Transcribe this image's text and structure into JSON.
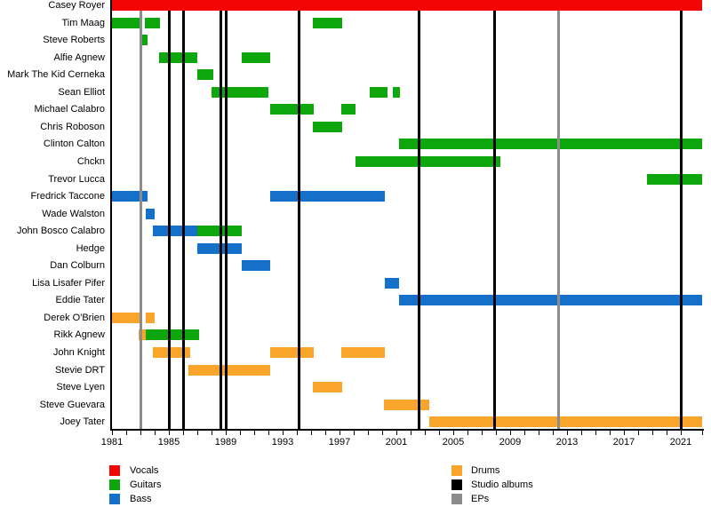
{
  "chart_data": {
    "type": "timeline",
    "title": "",
    "x_axis": {
      "min_year": 1981,
      "max_year": 2022.5,
      "tick_interval": 1,
      "labeled_ticks": [
        1981,
        1985,
        1989,
        1993,
        1997,
        2001,
        2005,
        2009,
        2013,
        2017,
        2021
      ]
    },
    "colors": {
      "vocals": "#f40505",
      "guitars": "#0da70d",
      "bass": "#1470c8",
      "drums": "#f9a42a",
      "studio_albums": "#000000",
      "eps": "#8c8c8c"
    },
    "legend": [
      {
        "label": "Vocals",
        "color_key": "vocals"
      },
      {
        "label": "Guitars",
        "color_key": "guitars"
      },
      {
        "label": "Bass",
        "color_key": "bass"
      },
      {
        "label": "Drums",
        "color_key": "drums"
      },
      {
        "label": "Studio albums",
        "color_key": "studio_albums"
      },
      {
        "label": "EPs",
        "color_key": "eps"
      }
    ],
    "members": [
      {
        "name": "Casey Royer",
        "bars": [
          {
            "role": "vocals",
            "start": 1981,
            "end": 2022.5
          }
        ]
      },
      {
        "name": "Tim Maag",
        "bars": [
          {
            "role": "guitars",
            "start": 1981,
            "end": 1983
          },
          {
            "role": "guitars",
            "start": 1983.3,
            "end": 1984.4
          },
          {
            "role": "guitars",
            "start": 1995.1,
            "end": 1997.2
          }
        ]
      },
      {
        "name": "Steve Roberts",
        "bars": [
          {
            "role": "guitars",
            "start": 1983,
            "end": 1983.5
          }
        ]
      },
      {
        "name": "Alfie Agnew",
        "bars": [
          {
            "role": "guitars",
            "start": 1984.3,
            "end": 1987
          },
          {
            "role": "guitars",
            "start": 1990.1,
            "end": 1992.1
          }
        ]
      },
      {
        "name": "Mark The Kid Cerneka",
        "bars": [
          {
            "role": "guitars",
            "start": 1987,
            "end": 1988.1
          }
        ]
      },
      {
        "name": "Sean Elliot",
        "bars": [
          {
            "role": "guitars",
            "start": 1988,
            "end": 1992
          },
          {
            "role": "guitars",
            "start": 1999.1,
            "end": 2000.4
          },
          {
            "role": "guitars",
            "start": 2000.75,
            "end": 2001.25
          }
        ]
      },
      {
        "name": "Michael Calabro",
        "bars": [
          {
            "role": "guitars",
            "start": 1992.1,
            "end": 1995.2
          },
          {
            "role": "guitars",
            "start": 1997.1,
            "end": 1998.1
          }
        ]
      },
      {
        "name": "Chris Roboson",
        "bars": [
          {
            "role": "guitars",
            "start": 1995.1,
            "end": 1997.2
          }
        ]
      },
      {
        "name": "Clinton Calton",
        "bars": [
          {
            "role": "guitars",
            "start": 2001.2,
            "end": 2022.5
          }
        ]
      },
      {
        "name": "Chckn",
        "bars": [
          {
            "role": "guitars",
            "start": 1998.1,
            "end": 2008.3
          }
        ]
      },
      {
        "name": "Trevor Lucca",
        "bars": [
          {
            "role": "guitars",
            "start": 2018.6,
            "end": 2022.5
          }
        ]
      },
      {
        "name": "Fredrick Taccone",
        "bars": [
          {
            "role": "bass",
            "start": 1981,
            "end": 1983.5
          },
          {
            "role": "bass",
            "start": 1992.1,
            "end": 2000.2
          }
        ]
      },
      {
        "name": "Wade Walston",
        "bars": [
          {
            "role": "bass",
            "start": 1983.4,
            "end": 1984
          }
        ]
      },
      {
        "name": "John Bosco Calabro",
        "bars": [
          {
            "role": "bass",
            "start": 1983.9,
            "end": 1987
          },
          {
            "role": "guitars",
            "start": 1987,
            "end": 1990.1
          }
        ]
      },
      {
        "name": "Hedge",
        "bars": [
          {
            "role": "bass",
            "start": 1987,
            "end": 1990.1
          }
        ]
      },
      {
        "name": "Dan Colburn",
        "bars": [
          {
            "role": "bass",
            "start": 1990.1,
            "end": 1992.1
          }
        ]
      },
      {
        "name": "Lisa Lisafer Pifer",
        "bars": [
          {
            "role": "bass",
            "start": 2000.2,
            "end": 2001.2
          }
        ]
      },
      {
        "name": "Eddie Tater",
        "bars": [
          {
            "role": "bass",
            "start": 2001.2,
            "end": 2022.5
          }
        ]
      },
      {
        "name": "Derek O'Brien",
        "bars": [
          {
            "role": "drums",
            "start": 1981,
            "end": 1983
          },
          {
            "role": "drums",
            "start": 1983.4,
            "end": 1984
          }
        ]
      },
      {
        "name": "Rikk Agnew",
        "bars": [
          {
            "role": "drums",
            "start": 1982.9,
            "end": 1983.4
          },
          {
            "role": "guitars",
            "start": 1983.4,
            "end": 1987.1
          }
        ]
      },
      {
        "name": "John Knight",
        "bars": [
          {
            "role": "drums",
            "start": 1983.9,
            "end": 1986.5
          },
          {
            "role": "drums",
            "start": 1992.1,
            "end": 1995.2
          },
          {
            "role": "drums",
            "start": 1997.1,
            "end": 2000.2
          }
        ]
      },
      {
        "name": "Stevie DRT",
        "bars": [
          {
            "role": "drums",
            "start": 1986.4,
            "end": 1992.1
          }
        ]
      },
      {
        "name": "Steve Lyen",
        "bars": [
          {
            "role": "drums",
            "start": 1995.1,
            "end": 1997.2
          }
        ]
      },
      {
        "name": "Steve Guevara",
        "bars": [
          {
            "role": "drums",
            "start": 2000.1,
            "end": 2003.3
          }
        ]
      },
      {
        "name": "Joey Tater",
        "bars": [
          {
            "role": "drums",
            "start": 2003.3,
            "end": 2022.5
          }
        ]
      }
    ],
    "releases": {
      "studio_albums": [
        1985,
        1986,
        1988.6,
        1989,
        1994.1,
        2002.55,
        2007.9,
        2021
      ],
      "eps": [
        1983,
        2012.35
      ]
    }
  }
}
